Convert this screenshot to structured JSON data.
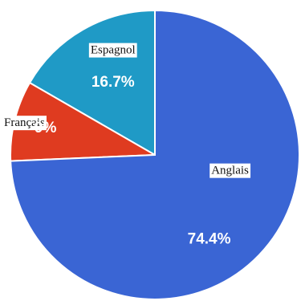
{
  "chart_data": {
    "type": "pie",
    "title": "",
    "start_angle_deg": 90,
    "direction": "counterclockwise",
    "slices": [
      {
        "label": "Espagnol",
        "value": 16.7,
        "value_label": "16.7%",
        "color": "#1f9ac6"
      },
      {
        "label": "Français",
        "value": 9,
        "value_label": "9%",
        "color": "#df3b20"
      },
      {
        "label": "Anglais",
        "value": 74.4,
        "value_label": "74.4%",
        "color": "#3a65d4"
      }
    ],
    "legend": "none"
  }
}
